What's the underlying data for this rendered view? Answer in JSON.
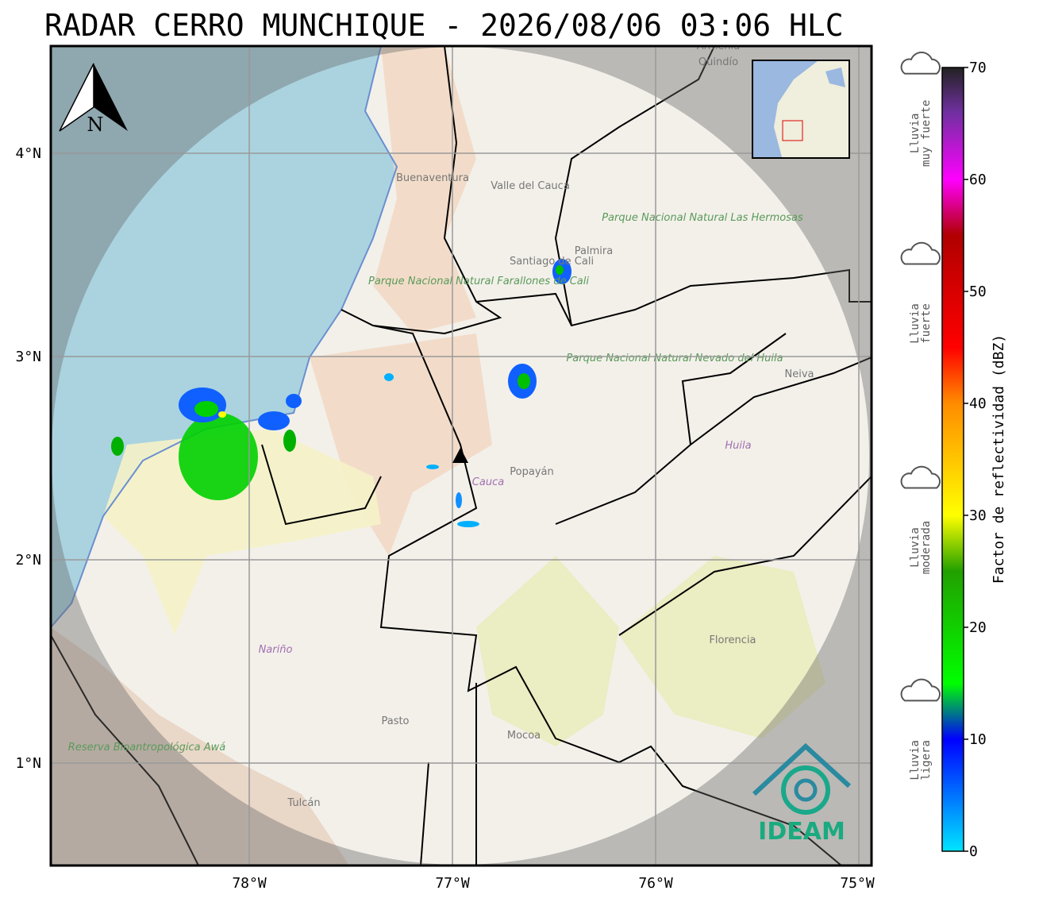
{
  "header": {
    "title": "RADAR CERRO MUNCHIQUE - 2026/08/06 03:06 HLC"
  },
  "map": {
    "north_label": "N",
    "lat_ticks": [
      {
        "value": 4,
        "label": "4°N"
      },
      {
        "value": 3,
        "label": "3°N"
      },
      {
        "value": 2,
        "label": "2°N"
      },
      {
        "value": 1,
        "label": "1°N"
      }
    ],
    "lon_ticks": [
      {
        "value": -78,
        "label": "78°W"
      },
      {
        "value": -77,
        "label": "77°W"
      },
      {
        "value": -76,
        "label": "76°W"
      },
      {
        "value": -75,
        "label": "75°W"
      }
    ],
    "places": [
      {
        "label": "Armenia"
      },
      {
        "label": "Quindío"
      },
      {
        "label": "Buenaventura"
      },
      {
        "label": "Valle del Cauca"
      },
      {
        "label": "Parque Nacional Natural Las Hermosas"
      },
      {
        "label": "Palmira"
      },
      {
        "label": "Santiago de Cali"
      },
      {
        "label": "Parque Nacional Natural Farallones de Cali"
      },
      {
        "label": "Parque Nacional Natural Nevado del Huila"
      },
      {
        "label": "Neiva"
      },
      {
        "label": "Cauca"
      },
      {
        "label": "Popayán"
      },
      {
        "label": "Huila"
      },
      {
        "label": "Nariño"
      },
      {
        "label": "Florencia"
      },
      {
        "label": "Pasto"
      },
      {
        "label": "Mocoa"
      },
      {
        "label": "Reserva Bioantropológica Awá"
      },
      {
        "label": "Tulcán"
      }
    ],
    "logo": "IDEAM"
  },
  "colorbar": {
    "label": "Factor de reflectividad (dBZ)",
    "range": [
      0,
      70
    ],
    "ticks": [
      0,
      10,
      20,
      30,
      40,
      50,
      60,
      70
    ],
    "stops": [
      {
        "value": 0,
        "color": "#00e5ff"
      },
      {
        "value": 10,
        "color": "#0000ff"
      },
      {
        "value": 15,
        "color": "#00ff00"
      },
      {
        "value": 25,
        "color": "#22a000"
      },
      {
        "value": 30,
        "color": "#ffff00"
      },
      {
        "value": 40,
        "color": "#ff8c00"
      },
      {
        "value": 45,
        "color": "#ff0000"
      },
      {
        "value": 55,
        "color": "#b00000"
      },
      {
        "value": 60,
        "color": "#ff00ff"
      },
      {
        "value": 66,
        "color": "#7030a0"
      },
      {
        "value": 70,
        "color": "#222222"
      }
    ],
    "categories": [
      {
        "label": "Lluvia muy fuerte",
        "value": 62
      },
      {
        "label": "Lluvia fuerte",
        "value": 45
      },
      {
        "label": "Lluvia moderada",
        "value": 25
      },
      {
        "label": "Lluvia ligera",
        "value": 6
      }
    ]
  }
}
